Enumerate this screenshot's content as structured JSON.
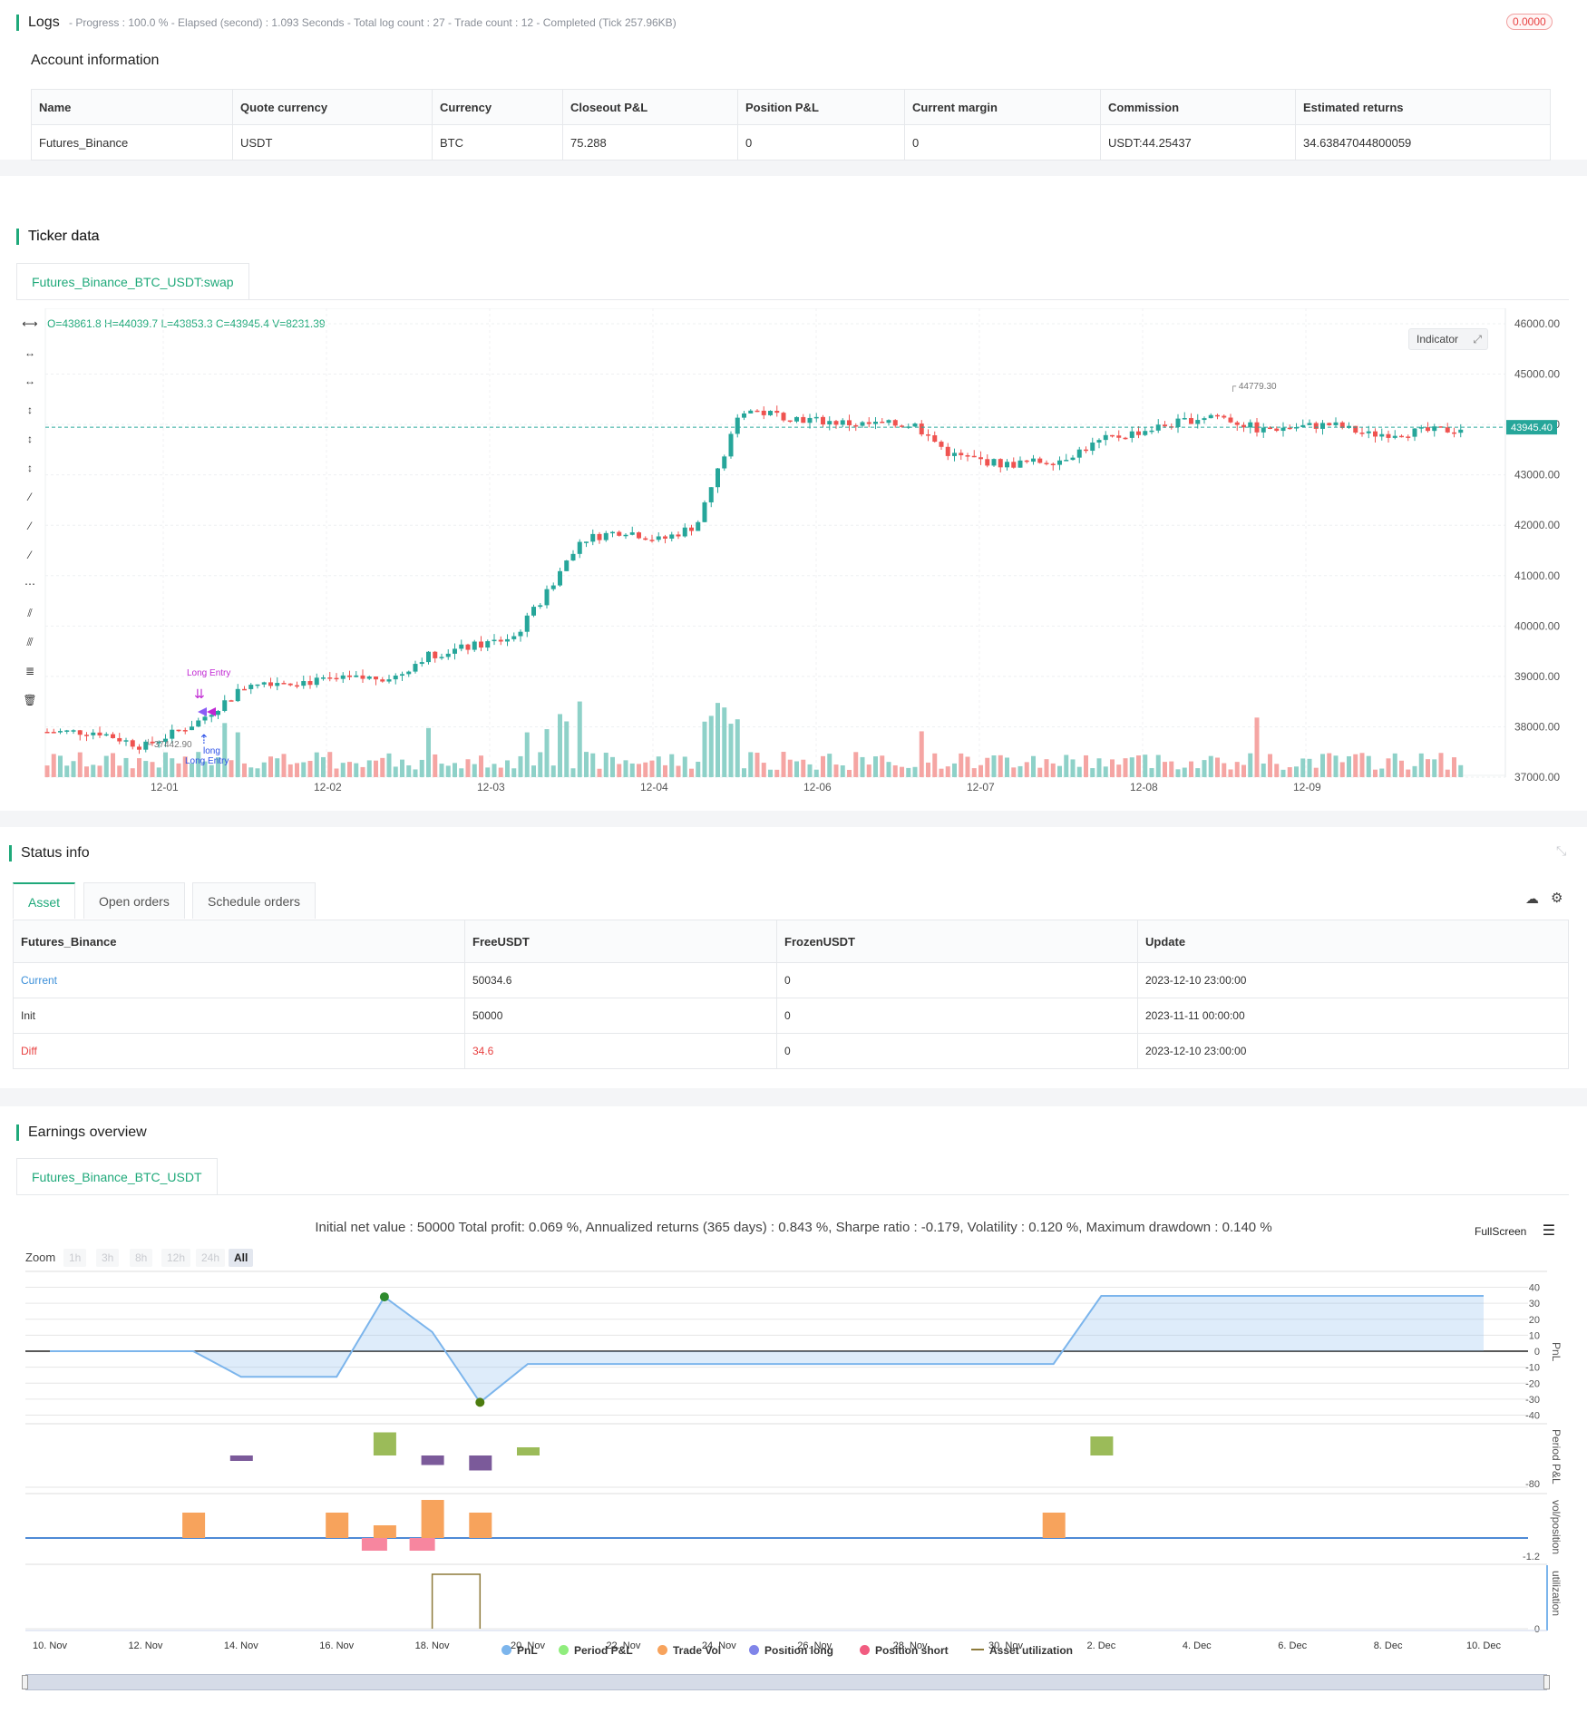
{
  "logs": {
    "title": "Logs",
    "summary": "- Progress : 100.0 % - Elapsed (second) : 1.093  Seconds - Total log count : 27 - Trade count : 12 - Completed (Tick 257.96KB)",
    "badge": "0.0000",
    "account_title": "Account information",
    "columns": [
      "Name",
      "Quote currency",
      "Currency",
      "Closeout P&L",
      "Position P&L",
      "Current margin",
      "Commission",
      "Estimated returns"
    ],
    "row": [
      "Futures_Binance",
      "USDT",
      "BTC",
      "75.288",
      "0",
      "0",
      "USDT:44.25437",
      "34.63847044800059"
    ]
  },
  "ticker": {
    "title": "Ticker data",
    "tab": "Futures_Binance_BTC_USDT:swap",
    "ohlc": "O=43861.8 H=44039.7 L=43853.3 C=43945.4 V=8231.39",
    "indicator_label": "Indicator",
    "last_price": "43945.40",
    "high_label": "44779.30",
    "low_label": "37442.90",
    "signal_long_entry": "Long Entry",
    "signal_long": "long",
    "signal_short_top": "short",
    "y_ticks": [
      "46000.00",
      "45000.00",
      "44000.00",
      "43000.00",
      "42000.00",
      "41000.00",
      "40000.00",
      "39000.00",
      "38000.00",
      "37000.00"
    ],
    "x_ticks": [
      "12-01",
      "12-02",
      "12-03",
      "12-04",
      "12-06",
      "12-07",
      "12-08",
      "12-09"
    ]
  },
  "status": {
    "title": "Status info",
    "tabs": [
      "Asset",
      "Open orders",
      "Schedule orders"
    ],
    "columns": [
      "Futures_Binance",
      "FreeUSDT",
      "FrozenUSDT",
      "Update"
    ],
    "rows": [
      {
        "label": "Current",
        "free": "50034.6",
        "frozen": "0",
        "update": "2023-12-10 23:00:00"
      },
      {
        "label": "Init",
        "free": "50000",
        "frozen": "0",
        "update": "2023-11-11 00:00:00"
      },
      {
        "label": "Diff",
        "free": "34.6",
        "frozen": "0",
        "update": "2023-12-10 23:00:00"
      }
    ]
  },
  "earnings": {
    "title": "Earnings overview",
    "tab": "Futures_Binance_BTC_USDT",
    "summary": "Initial net value : 50000 Total profit: 0.069 %, Annualized returns (365 days) : 0.843 %, Sharpe ratio : -0.179, Volatility : 0.120 %, Maximum drawdown : 0.140 %",
    "fullscreen": "FullScreen",
    "zoom_label": "Zoom",
    "zoom_buttons": [
      "1h",
      "3h",
      "8h",
      "12h",
      "24h",
      "All"
    ],
    "pnl_ticks": [
      "40",
      "30",
      "20",
      "10",
      "0",
      "-10",
      "-20",
      "-30",
      "-40"
    ],
    "axis_labels": [
      "PnL",
      "Period P&L",
      "vol/position",
      "utilization"
    ],
    "period_tick": "-80",
    "vol_tick": "-1.2",
    "util_tick": "0",
    "x_ticks": [
      "10. Nov",
      "12. Nov",
      "14. Nov",
      "16. Nov",
      "18. Nov",
      "20. Nov",
      "22. Nov",
      "24. Nov",
      "26. Nov",
      "28. Nov",
      "30. Nov",
      "2. Dec",
      "4. Dec",
      "6. Dec",
      "8. Dec",
      "10. Dec"
    ],
    "legend": [
      {
        "label": "PnL",
        "color": "#7cb5ec"
      },
      {
        "label": "Period P&L",
        "color": "#90ed7d"
      },
      {
        "label": "Trade Vol",
        "color": "#f7a35c"
      },
      {
        "label": "Position long",
        "color": "#8085e9"
      },
      {
        "label": "Position short",
        "color": "#f15c80"
      },
      {
        "label": "Asset utilization",
        "color": "#8d7a3a"
      }
    ]
  },
  "chart_data": [
    {
      "type": "line",
      "title": "",
      "xlabel": "",
      "ylabel": "PnL",
      "x": [
        "10. Nov",
        "13. Nov",
        "14. Nov",
        "16. Nov",
        "17. Nov",
        "18. Nov",
        "19. Nov",
        "20. Nov",
        "1. Dec",
        "2. Dec",
        "10. Dec"
      ],
      "values": [
        0,
        0,
        -16,
        -16,
        34,
        12,
        -32,
        -8,
        -8,
        34.6,
        34.6
      ],
      "ylim": [
        -40,
        40
      ]
    },
    {
      "type": "bar",
      "ylabel": "Period P&L",
      "x": [
        "14. Nov",
        "17. Nov",
        "18. Nov",
        "19. Nov",
        "20. Nov",
        "2. Dec"
      ],
      "values": [
        -8,
        34,
        -14,
        -22,
        12,
        28
      ]
    },
    {
      "type": "bar",
      "ylabel": "vol/position",
      "series": [
        {
          "name": "Trade Vol",
          "x": [
            "13. Nov",
            "16. Nov",
            "17. Nov",
            "18. Nov",
            "19. Nov",
            "1. Dec"
          ],
          "values": [
            1,
            1,
            0.5,
            1.5,
            1,
            1
          ]
        },
        {
          "name": "Position short",
          "x": [
            "17. Nov",
            "18. Nov"
          ],
          "values": [
            -0.5,
            -0.5
          ]
        }
      ]
    },
    {
      "type": "line",
      "ylabel": "utilization",
      "x": [
        "18. Nov",
        "19. Nov"
      ],
      "values": [
        1,
        1
      ]
    }
  ]
}
